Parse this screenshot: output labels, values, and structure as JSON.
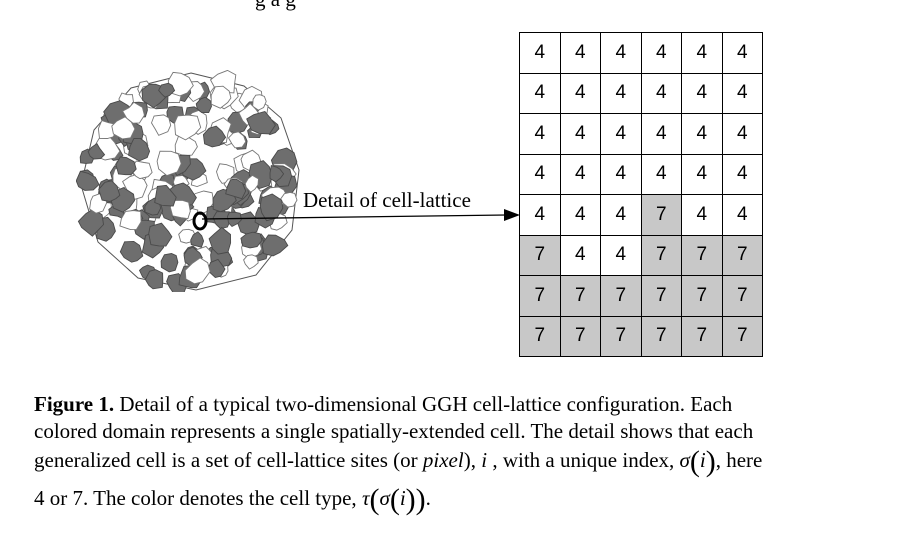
{
  "page": {
    "top_fragment": "g a         g"
  },
  "figure": {
    "arrow_label": "Detail of cell-lattice",
    "lattice": {
      "rows": [
        [
          "4",
          "4",
          "4",
          "4",
          "4",
          "4"
        ],
        [
          "4",
          "4",
          "4",
          "4",
          "4",
          "4"
        ],
        [
          "4",
          "4",
          "4",
          "4",
          "4",
          "4"
        ],
        [
          "4",
          "4",
          "4",
          "4",
          "4",
          "4"
        ],
        [
          "4",
          "4",
          "4",
          "7",
          "4",
          "4"
        ],
        [
          "7",
          "4",
          "4",
          "7",
          "7",
          "7"
        ],
        [
          "7",
          "7",
          "7",
          "7",
          "7",
          "7"
        ],
        [
          "7",
          "7",
          "7",
          "7",
          "7",
          "7"
        ]
      ],
      "colors": {
        "4": "#ffffff",
        "7": "#c8c8c8"
      }
    }
  },
  "caption": {
    "label": "Figure 1.",
    "line1": " Detail of a typical two-dimensional GGH cell-lattice configuration. Each",
    "line2": "colored domain represents a single spatially-extended cell. The detail shows that each",
    "line3_a": "generalized cell is a set of cell-lattice sites (or ",
    "line3_pixel": "pixel",
    "line3_b": "), ",
    "line3_c": " , with a unique index, ",
    "line3_d": ", here",
    "line4_a": "4 or 7. The color denotes the cell type, ",
    "line4_b": ".",
    "sym_i": "i",
    "sym_sigma": "σ",
    "sym_tau": "τ"
  }
}
